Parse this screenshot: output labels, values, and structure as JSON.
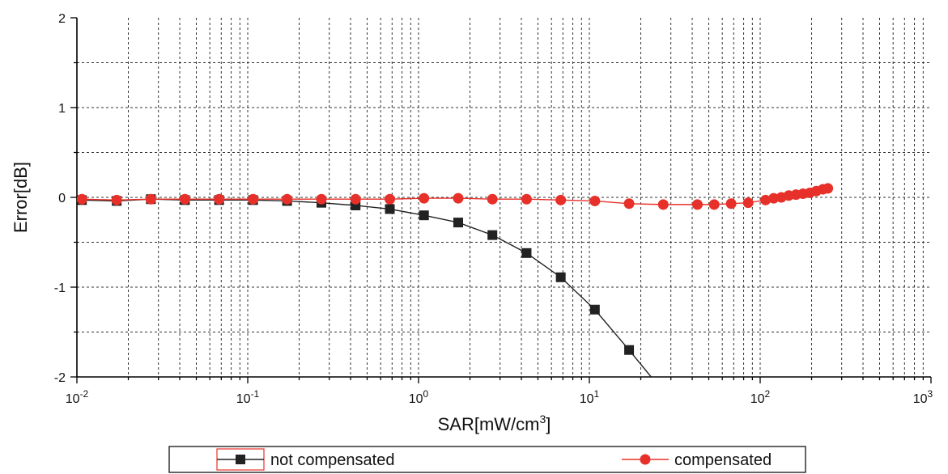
{
  "chart_data": {
    "type": "line",
    "xscale": "log",
    "xlim": [
      0.01,
      1000
    ],
    "ylim": [
      -2,
      2
    ],
    "xlabel": "SAR[mW/cm³]",
    "ylabel": "Error[dB]",
    "x_ticks": [
      {
        "base": "10",
        "exp": "-2"
      },
      {
        "base": "10",
        "exp": "-1"
      },
      {
        "base": "10",
        "exp": "0"
      },
      {
        "base": "10",
        "exp": "1"
      },
      {
        "base": "10",
        "exp": "2"
      },
      {
        "base": "10",
        "exp": "3"
      }
    ],
    "y_ticks": [
      "2",
      "1",
      "0",
      "-1",
      "-2"
    ],
    "grid": true,
    "legend_position": "bottom",
    "series": [
      {
        "name": "not compensated",
        "color": "#222222",
        "marker": "square",
        "x": [
          0.0107,
          0.0171,
          0.0271,
          0.0429,
          0.068,
          0.1075,
          0.17,
          0.27,
          0.428,
          0.679,
          1.076,
          1.707,
          2.706,
          4.29,
          6.8,
          10.77,
          17.08,
          23.0
        ],
        "y": [
          -0.03,
          -0.04,
          -0.02,
          -0.03,
          -0.03,
          -0.03,
          -0.04,
          -0.06,
          -0.09,
          -0.13,
          -0.2,
          -0.28,
          -0.42,
          -0.62,
          -0.89,
          -1.25,
          -1.7,
          -2.0
        ]
      },
      {
        "name": "compensated",
        "color": "#e8302a",
        "marker": "circle",
        "x": [
          0.0107,
          0.0171,
          0.0271,
          0.0429,
          0.068,
          0.1075,
          0.17,
          0.27,
          0.428,
          0.679,
          1.076,
          1.707,
          2.706,
          4.29,
          6.8,
          10.77,
          17.08,
          27.08,
          42.9,
          53.8,
          67.6,
          85.1,
          107.5,
          120.0,
          133.0,
          147.0,
          162.0,
          178.0,
          195.0,
          213.0,
          233.0,
          249.0
        ],
        "y": [
          -0.02,
          -0.03,
          -0.02,
          -0.02,
          -0.02,
          -0.02,
          -0.02,
          -0.02,
          -0.02,
          -0.02,
          -0.01,
          -0.01,
          -0.02,
          -0.02,
          -0.03,
          -0.04,
          -0.07,
          -0.08,
          -0.08,
          -0.08,
          -0.07,
          -0.06,
          -0.03,
          -0.01,
          0.0,
          0.02,
          0.03,
          0.04,
          0.05,
          0.07,
          0.09,
          0.1
        ]
      }
    ]
  }
}
